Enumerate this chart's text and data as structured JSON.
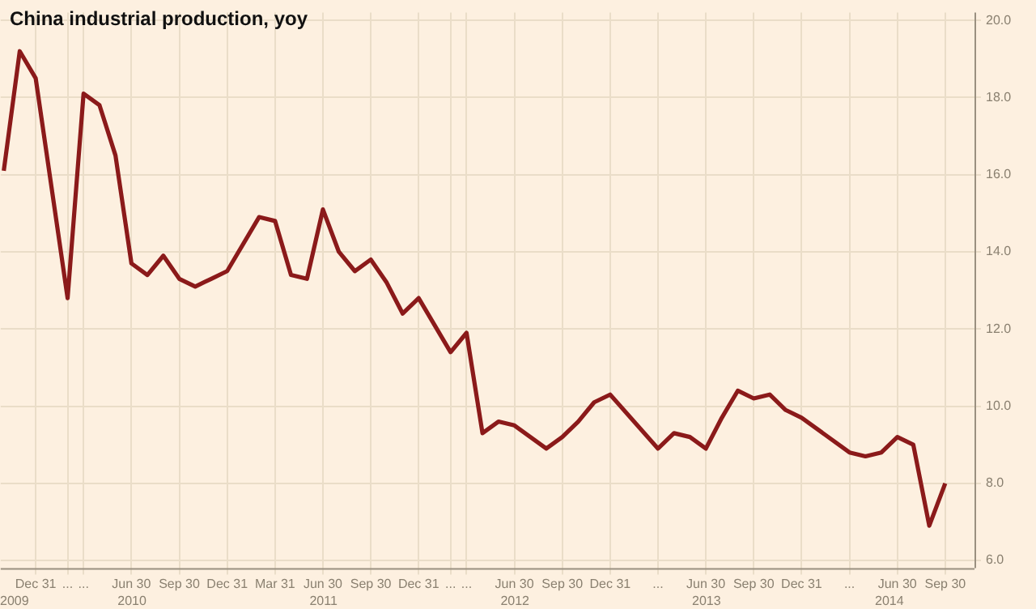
{
  "chart_data": {
    "type": "line",
    "title": "China industrial production, yoy",
    "x": [
      "2009-10-31",
      "2009-11-30",
      "2009-12-31",
      "2010-02-28",
      "2010-03-31",
      "2010-04-30",
      "2010-05-31",
      "2010-06-30",
      "2010-07-31",
      "2010-08-31",
      "2010-09-30",
      "2010-10-31",
      "2010-11-30",
      "2010-12-31",
      "2011-02-28",
      "2011-03-31",
      "2011-04-30",
      "2011-05-31",
      "2011-06-30",
      "2011-07-31",
      "2011-08-31",
      "2011-09-30",
      "2011-10-31",
      "2011-11-30",
      "2011-12-31",
      "2012-02-29",
      "2012-03-31",
      "2012-04-30",
      "2012-05-31",
      "2012-06-30",
      "2012-07-31",
      "2012-08-31",
      "2012-09-30",
      "2012-10-31",
      "2012-11-30",
      "2012-12-31",
      "2013-03-31",
      "2013-04-30",
      "2013-05-31",
      "2013-06-30",
      "2013-07-31",
      "2013-08-31",
      "2013-09-30",
      "2013-10-31",
      "2013-11-30",
      "2013-12-31",
      "2014-03-31",
      "2014-04-30",
      "2014-05-31",
      "2014-06-30",
      "2014-07-31",
      "2014-08-31",
      "2014-09-30"
    ],
    "series": [
      {
        "color": "#8b1a1a",
        "values": [
          16.1,
          19.2,
          18.5,
          12.8,
          18.1,
          17.8,
          16.5,
          13.7,
          13.4,
          13.9,
          13.3,
          13.1,
          13.3,
          13.5,
          14.9,
          14.8,
          13.4,
          13.3,
          15.1,
          14.0,
          13.5,
          13.8,
          13.2,
          12.4,
          12.8,
          11.4,
          11.9,
          9.3,
          9.6,
          9.5,
          9.2,
          8.9,
          9.2,
          9.6,
          10.1,
          10.3,
          8.9,
          9.3,
          9.2,
          8.9,
          9.7,
          10.4,
          10.2,
          10.3,
          9.9,
          9.7,
          8.8,
          8.7,
          8.8,
          9.2,
          9.0,
          6.9,
          8.0
        ]
      }
    ],
    "xlim": [
      "2009-10-25",
      "2014-11-25"
    ],
    "xticks": [
      {
        "value": "2009-12-31",
        "label": "Dec 31"
      },
      {
        "value": "2010-02-28",
        "label": "..."
      },
      {
        "value": "2010-03-31",
        "label": "..."
      },
      {
        "value": "2010-06-30",
        "label": "Jun 30"
      },
      {
        "value": "2010-09-30",
        "label": "Sep 30"
      },
      {
        "value": "2010-12-31",
        "label": "Dec 31"
      },
      {
        "value": "2011-03-31",
        "label": "Mar 31"
      },
      {
        "value": "2011-06-30",
        "label": "Jun 30"
      },
      {
        "value": "2011-09-30",
        "label": "Sep 30"
      },
      {
        "value": "2011-12-31",
        "label": "Dec 31"
      },
      {
        "value": "2012-02-29",
        "label": "..."
      },
      {
        "value": "2012-03-31",
        "label": "..."
      },
      {
        "value": "2012-06-30",
        "label": "Jun 30"
      },
      {
        "value": "2012-09-30",
        "label": "Sep 30"
      },
      {
        "value": "2012-12-31",
        "label": "Dec 31"
      },
      {
        "value": "2013-03-31",
        "label": "..."
      },
      {
        "value": "2013-06-30",
        "label": "Jun 30"
      },
      {
        "value": "2013-09-30",
        "label": "Sep 30"
      },
      {
        "value": "2013-12-31",
        "label": "Dec 31"
      },
      {
        "value": "2014-03-31",
        "label": "..."
      },
      {
        "value": "2014-06-30",
        "label": "Jun 30"
      },
      {
        "value": "2014-09-30",
        "label": "Sep 30"
      }
    ],
    "x2lim": [
      "2009-10-25",
      "2014-11-25"
    ],
    "x2ticks": [
      {
        "value": "2009-11-20",
        "label": "2009"
      },
      {
        "value": "2010-07-01",
        "label": "2010"
      },
      {
        "value": "2011-07-01",
        "label": "2011"
      },
      {
        "value": "2012-07-01",
        "label": "2012"
      },
      {
        "value": "2013-07-01",
        "label": "2013"
      },
      {
        "value": "2014-06-15",
        "label": "2014"
      }
    ],
    "ylim": [
      5.8,
      20.2
    ],
    "yticks": [
      {
        "value": 6,
        "label": "6.0"
      },
      {
        "value": 8,
        "label": "8.0"
      },
      {
        "value": 10,
        "label": "10.0"
      },
      {
        "value": 12,
        "label": "12.0"
      },
      {
        "value": 14,
        "label": "14.0"
      },
      {
        "value": 16,
        "label": "16.0"
      },
      {
        "value": 18,
        "label": "18.0"
      },
      {
        "value": 20,
        "label": "20.0"
      }
    ],
    "grid": true,
    "legend": false,
    "marker": "none",
    "line_style": "solid"
  }
}
